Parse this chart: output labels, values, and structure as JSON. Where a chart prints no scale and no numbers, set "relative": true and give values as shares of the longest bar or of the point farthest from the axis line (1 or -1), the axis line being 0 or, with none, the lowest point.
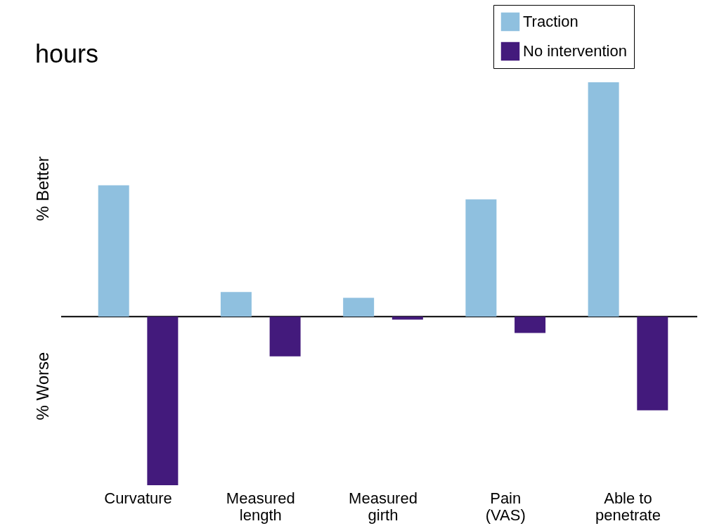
{
  "chart_data": {
    "type": "bar",
    "title": "hours",
    "relative": true,
    "categories": [
      "Curvature",
      "Measured\nlength",
      "Measured\ngirth",
      "Pain\n(VAS)",
      "Able to\npenetrate"
    ],
    "series": [
      {
        "name": "Traction",
        "color": "#8fc0df",
        "values": [
          0.56,
          0.105,
          0.08,
          0.5,
          1
        ]
      },
      {
        "name": "No intervention",
        "color": "#431a7c",
        "values": [
          -0.72,
          -0.17,
          -0.013,
          -0.07,
          -0.4
        ]
      }
    ],
    "annotations": [
      "% Better",
      "% Worse"
    ],
    "legend": "top right",
    "grid": false
  }
}
